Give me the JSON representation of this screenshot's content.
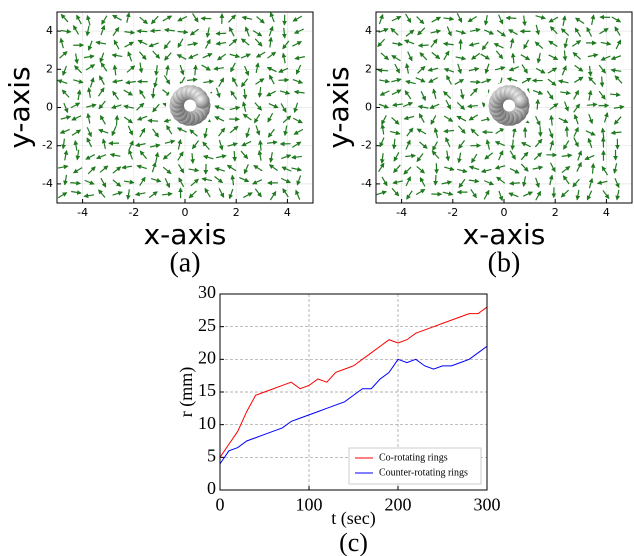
{
  "chart_data": [
    {
      "type": "quiver",
      "xlabel": "x-axis",
      "ylabel": "y-axis",
      "caption": "(a)",
      "color": "#1f7a1f",
      "xlim": [
        -5,
        5
      ],
      "ylim": [
        -5,
        5
      ],
      "xticks": [
        -4,
        -2,
        0,
        2,
        4
      ],
      "yticks": [
        -4,
        -2,
        0,
        2,
        4
      ],
      "grid": true
    },
    {
      "type": "quiver",
      "xlabel": "x-axis",
      "ylabel": "y-axis",
      "caption": "(b)",
      "color": "#1f7a1f",
      "xlim": [
        -5,
        5
      ],
      "ylim": [
        -5,
        5
      ],
      "xticks": [
        -4,
        -2,
        0,
        2,
        4
      ],
      "yticks": [
        -4,
        -2,
        0,
        2,
        4
      ],
      "grid": true
    },
    {
      "type": "line",
      "xlabel": "t (sec)",
      "ylabel": "r (mm)",
      "caption": "(c)",
      "xlim": [
        0,
        300
      ],
      "ylim": [
        0,
        30
      ],
      "xticks": [
        0,
        100,
        200,
        300
      ],
      "yticks": [
        0,
        5,
        10,
        15,
        20,
        25,
        30
      ],
      "grid": true,
      "legend": "lower right",
      "x": [
        0,
        10,
        20,
        30,
        40,
        50,
        60,
        70,
        80,
        90,
        100,
        110,
        120,
        130,
        140,
        150,
        160,
        170,
        180,
        190,
        200,
        210,
        220,
        230,
        240,
        250,
        260,
        270,
        280,
        290,
        300
      ],
      "series": [
        {
          "name": "Co-rotating rings",
          "color": "#ff0000",
          "values": [
            5,
            7,
            9,
            12,
            14.5,
            15,
            15.5,
            16,
            16.5,
            15.5,
            16,
            17,
            16.5,
            18,
            18.5,
            19,
            20,
            21,
            22,
            23,
            22.5,
            23,
            24,
            24.5,
            25,
            25.5,
            26,
            26.5,
            27,
            27,
            28
          ]
        },
        {
          "name": "Counter-rotating rings",
          "color": "#0000ff",
          "values": [
            4,
            6,
            6.5,
            7.5,
            8,
            8.5,
            9,
            9.5,
            10.5,
            11,
            11.5,
            12,
            12.5,
            13,
            13.5,
            14.5,
            15.5,
            15.5,
            17,
            18,
            20,
            19.5,
            20,
            19,
            18.5,
            19,
            19,
            19.5,
            20,
            21,
            22
          ]
        }
      ]
    }
  ]
}
